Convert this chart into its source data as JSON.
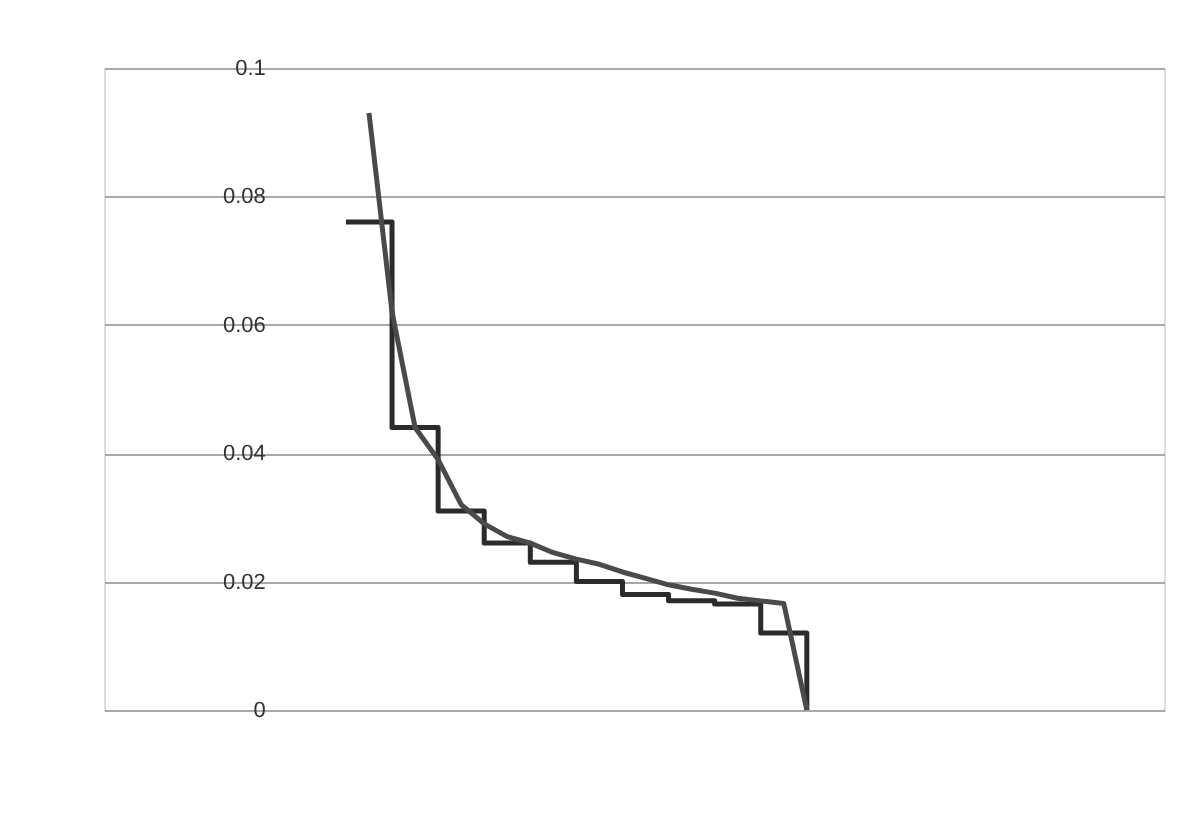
{
  "chart_data": {
    "type": "line",
    "categories": [
      null,
      null,
      null,
      null,
      null,
      null,
      null,
      null,
      null,
      null,
      null,
      null,
      null,
      null,
      null,
      null,
      null,
      null,
      null,
      null,
      null,
      null,
      null,
      null,
      null,
      null,
      null,
      null,
      null,
      null,
      null,
      null,
      null,
      null,
      null,
      null,
      null,
      null,
      null,
      null,
      null,
      null,
      null,
      null,
      null,
      null
    ],
    "ylim": [
      0,
      0.1
    ],
    "yticks": [
      0,
      0.02,
      0.04,
      0.06,
      0.08,
      0.1
    ],
    "grid": "y",
    "tick_labels": "y",
    "series": [
      {
        "type": "step",
        "color": "#2b2b2b",
        "values": [
          null,
          null,
          null,
          null,
          null,
          null,
          null,
          null,
          null,
          null,
          0.076,
          0.076,
          0.044,
          0.044,
          0.031,
          0.031,
          0.026,
          0.026,
          0.023,
          0.023,
          0.02,
          0.02,
          0.018,
          0.018,
          0.017,
          0.017,
          0.0165,
          0.0165,
          0.012,
          0.012,
          0,
          null,
          null,
          null,
          null,
          null,
          null,
          null,
          null,
          null,
          null,
          null,
          null,
          null,
          null,
          null
        ]
      },
      {
        "color": "#4a4a4a",
        "values": [
          null,
          null,
          null,
          null,
          null,
          null,
          null,
          null,
          null,
          null,
          null,
          0.093,
          0.062,
          0.044,
          0.039,
          0.032,
          0.029,
          0.027,
          0.026,
          0.0245,
          0.0235,
          0.0227,
          0.0215,
          0.0205,
          0.0195,
          0.0188,
          0.0182,
          0.0174,
          0.017,
          0.0166,
          0,
          null,
          null,
          null,
          null,
          null,
          null,
          null,
          null,
          null,
          null,
          null,
          null,
          null,
          null,
          null
        ]
      }
    ]
  }
}
